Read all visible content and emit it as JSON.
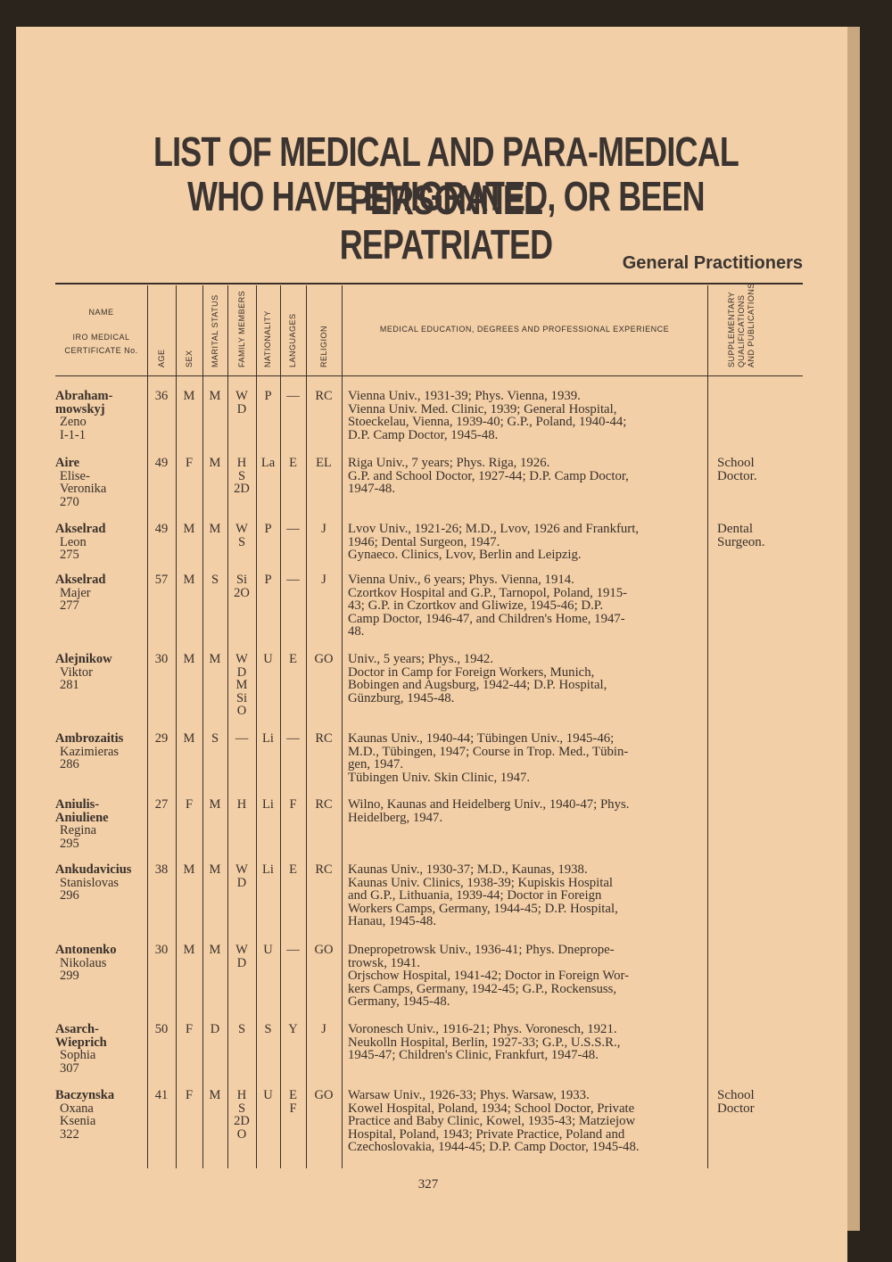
{
  "header": {
    "title": [
      "LIST OF MEDICAL AND PARA-MEDICAL PERSONNEL",
      "WHO HAVE EMIGRATED, OR BEEN REPATRIATED"
    ],
    "section": "General Practitioners"
  },
  "table": {
    "columns": {
      "name": "NAME",
      "cert": [
        "IRO MEDICAL",
        "CERTIFICATE No."
      ],
      "age": "AGE",
      "sex": "SEX",
      "marital": "MARITAL STATUS",
      "family": "FAMILY MEMBERS",
      "nationality": "NATIONALITY",
      "languages": "LANGUAGES",
      "religion": "RELIGION",
      "education": "MEDICAL EDUCATION, DEGREES AND PROFESSIONAL EXPERIENCE",
      "supplementary": [
        "SUPPLEMENTARY",
        "QUALIFICATIONS",
        "AND PUBLICATIONS"
      ]
    },
    "rows": [
      {
        "surname": [
          "Abraham-",
          "mowskyj"
        ],
        "given": [
          "Zeno"
        ],
        "cert": "I-1-1",
        "age": 36,
        "sex": "M",
        "marital": "M",
        "family": [
          "W",
          "D"
        ],
        "nationality": "P",
        "languages": [
          "—"
        ],
        "religion": "RC",
        "education": [
          "Vienna Univ., 1931-39; Phys. Vienna, 1939.",
          "Vienna Univ. Med. Clinic, 1939; General Hospital,",
          "Stoeckelau, Vienna, 1939-40; G.P., Poland, 1940-44;",
          "D.P. Camp Doctor, 1945-48."
        ],
        "supplementary": []
      },
      {
        "surname": [
          "Aire"
        ],
        "given": [
          "Elise-",
          "Veronika"
        ],
        "cert": "270",
        "age": 49,
        "sex": "F",
        "marital": "M",
        "family": [
          "H",
          "S",
          "2D"
        ],
        "nationality": "La",
        "languages": [
          "E"
        ],
        "religion": "EL",
        "education": [
          "Riga Univ., 7 years; Phys. Riga, 1926.",
          "G.P. and School Doctor, 1927-44; D.P. Camp Doctor,",
          "1947-48."
        ],
        "supplementary": [
          "School",
          "Doctor."
        ]
      },
      {
        "surname": [
          "Akselrad"
        ],
        "given": [
          "Leon"
        ],
        "cert": "275",
        "age": 49,
        "sex": "M",
        "marital": "M",
        "family": [
          "W",
          "S"
        ],
        "nationality": "P",
        "languages": [
          "—"
        ],
        "religion": "J",
        "education": [
          "Lvov Univ., 1921-26; M.D., Lvov, 1926 and Frankfurt,",
          "1946; Dental Surgeon, 1947.",
          "Gynaeco. Clinics, Lvov, Berlin and Leipzig."
        ],
        "supplementary": [
          "Dental",
          "Surgeon."
        ]
      },
      {
        "surname": [
          "Akselrad"
        ],
        "given": [
          "Majer"
        ],
        "cert": "277",
        "age": 57,
        "sex": "M",
        "marital": "S",
        "family": [
          "Si",
          "2O"
        ],
        "nationality": "P",
        "languages": [
          "—"
        ],
        "religion": "J",
        "education": [
          "Vienna Univ., 6 years; Phys. Vienna, 1914.",
          "Czortkov Hospital and G.P., Tarnopol, Poland, 1915-",
          "43; G.P. in Czortkov and Gliwize, 1945-46; D.P.",
          "Camp Doctor, 1946-47, and Children's Home, 1947-",
          "48."
        ],
        "supplementary": []
      },
      {
        "surname": [
          "Alejnikow"
        ],
        "given": [
          "Viktor"
        ],
        "cert": "281",
        "age": 30,
        "sex": "M",
        "marital": "M",
        "family": [
          "W",
          "D",
          "M",
          "Si",
          "O"
        ],
        "nationality": "U",
        "languages": [
          "E"
        ],
        "religion": "GO",
        "education": [
          "Univ., 5 years; Phys., 1942.",
          "Doctor in Camp for Foreign Workers, Munich,",
          "Bobingen and Augsburg, 1942-44; D.P. Hospital,",
          "Günzburg, 1945-48."
        ],
        "supplementary": []
      },
      {
        "surname": [
          "Ambrozaitis"
        ],
        "given": [
          "Kazimieras"
        ],
        "cert": "286",
        "age": 29,
        "sex": "M",
        "marital": "S",
        "family": [
          "—"
        ],
        "nationality": "Li",
        "languages": [
          "—"
        ],
        "religion": "RC",
        "education": [
          "Kaunas Univ., 1940-44; Tübingen Univ., 1945-46;",
          "M.D., Tübingen, 1947; Course in Trop. Med., Tübin-",
          "gen, 1947.",
          "Tübingen Univ. Skin Clinic, 1947."
        ],
        "supplementary": []
      },
      {
        "surname": [
          "Aniulis-",
          "Aniuliene"
        ],
        "given": [
          "Regina"
        ],
        "cert": "295",
        "age": 27,
        "sex": "F",
        "marital": "M",
        "family": [
          "H"
        ],
        "nationality": "Li",
        "languages": [
          "F"
        ],
        "religion": "RC",
        "education": [
          "Wilno, Kaunas and Heidelberg Univ., 1940-47; Phys.",
          "Heidelberg, 1947."
        ],
        "supplementary": []
      },
      {
        "surname": [
          "Ankudavicius"
        ],
        "given": [
          "Stanislovas"
        ],
        "cert": "296",
        "age": 38,
        "sex": "M",
        "marital": "M",
        "family": [
          "W",
          "D"
        ],
        "nationality": "Li",
        "languages": [
          "E"
        ],
        "religion": "RC",
        "education": [
          "Kaunas Univ., 1930-37; M.D., Kaunas, 1938.",
          "Kaunas Univ. Clinics, 1938-39; Kupiskis Hospital",
          "and G.P., Lithuania, 1939-44; Doctor in Foreign",
          "Workers Camps, Germany, 1944-45; D.P. Hospital,",
          "Hanau, 1945-48."
        ],
        "supplementary": []
      },
      {
        "surname": [
          "Antonenko"
        ],
        "given": [
          "Nikolaus"
        ],
        "cert": "299",
        "age": 30,
        "sex": "M",
        "marital": "M",
        "family": [
          "W",
          "D"
        ],
        "nationality": "U",
        "languages": [
          "—"
        ],
        "religion": "GO",
        "education": [
          "Dnepropetrowsk Univ., 1936-41; Phys. Dneprope-",
          "trowsk, 1941.",
          "Orjschow Hospital, 1941-42; Doctor in Foreign Wor-",
          "kers Camps, Germany, 1942-45; G.P., Rockensuss,",
          "Germany, 1945-48."
        ],
        "supplementary": []
      },
      {
        "surname": [
          "Asarch-",
          "Wieprich"
        ],
        "given": [
          "Sophia"
        ],
        "cert": "307",
        "age": 50,
        "sex": "F",
        "marital": "D",
        "family": [
          "S"
        ],
        "nationality": "S",
        "languages": [
          "Y"
        ],
        "religion": "J",
        "education": [
          "Voronesch Univ., 1916-21; Phys. Voronesch, 1921.",
          "Neukolln Hospital, Berlin, 1927-33; G.P., U.S.S.R.,",
          "1945-47; Children's Clinic, Frankfurt, 1947-48."
        ],
        "supplementary": []
      },
      {
        "surname": [
          "Baczynska"
        ],
        "given": [
          "Oxana",
          "Ksenia"
        ],
        "cert": "322",
        "age": 41,
        "sex": "F",
        "marital": "M",
        "family": [
          "H",
          "S",
          "2D",
          "O"
        ],
        "nationality": "U",
        "languages": [
          "E",
          "F"
        ],
        "religion": "GO",
        "education": [
          "Warsaw Univ., 1926-33; Phys. Warsaw, 1933.",
          "Kowel Hospital, Poland, 1934; School Doctor, Private",
          "Practice and Baby Clinic, Kowel, 1935-43; Matziejow",
          "Hospital, Poland, 1943; Private Practice, Poland and",
          "Czechoslovakia, 1944-45; D.P. Camp Doctor, 1945-48."
        ],
        "supplementary": [
          "School",
          "Doctor"
        ]
      }
    ]
  },
  "footer": {
    "page_number": "327"
  }
}
